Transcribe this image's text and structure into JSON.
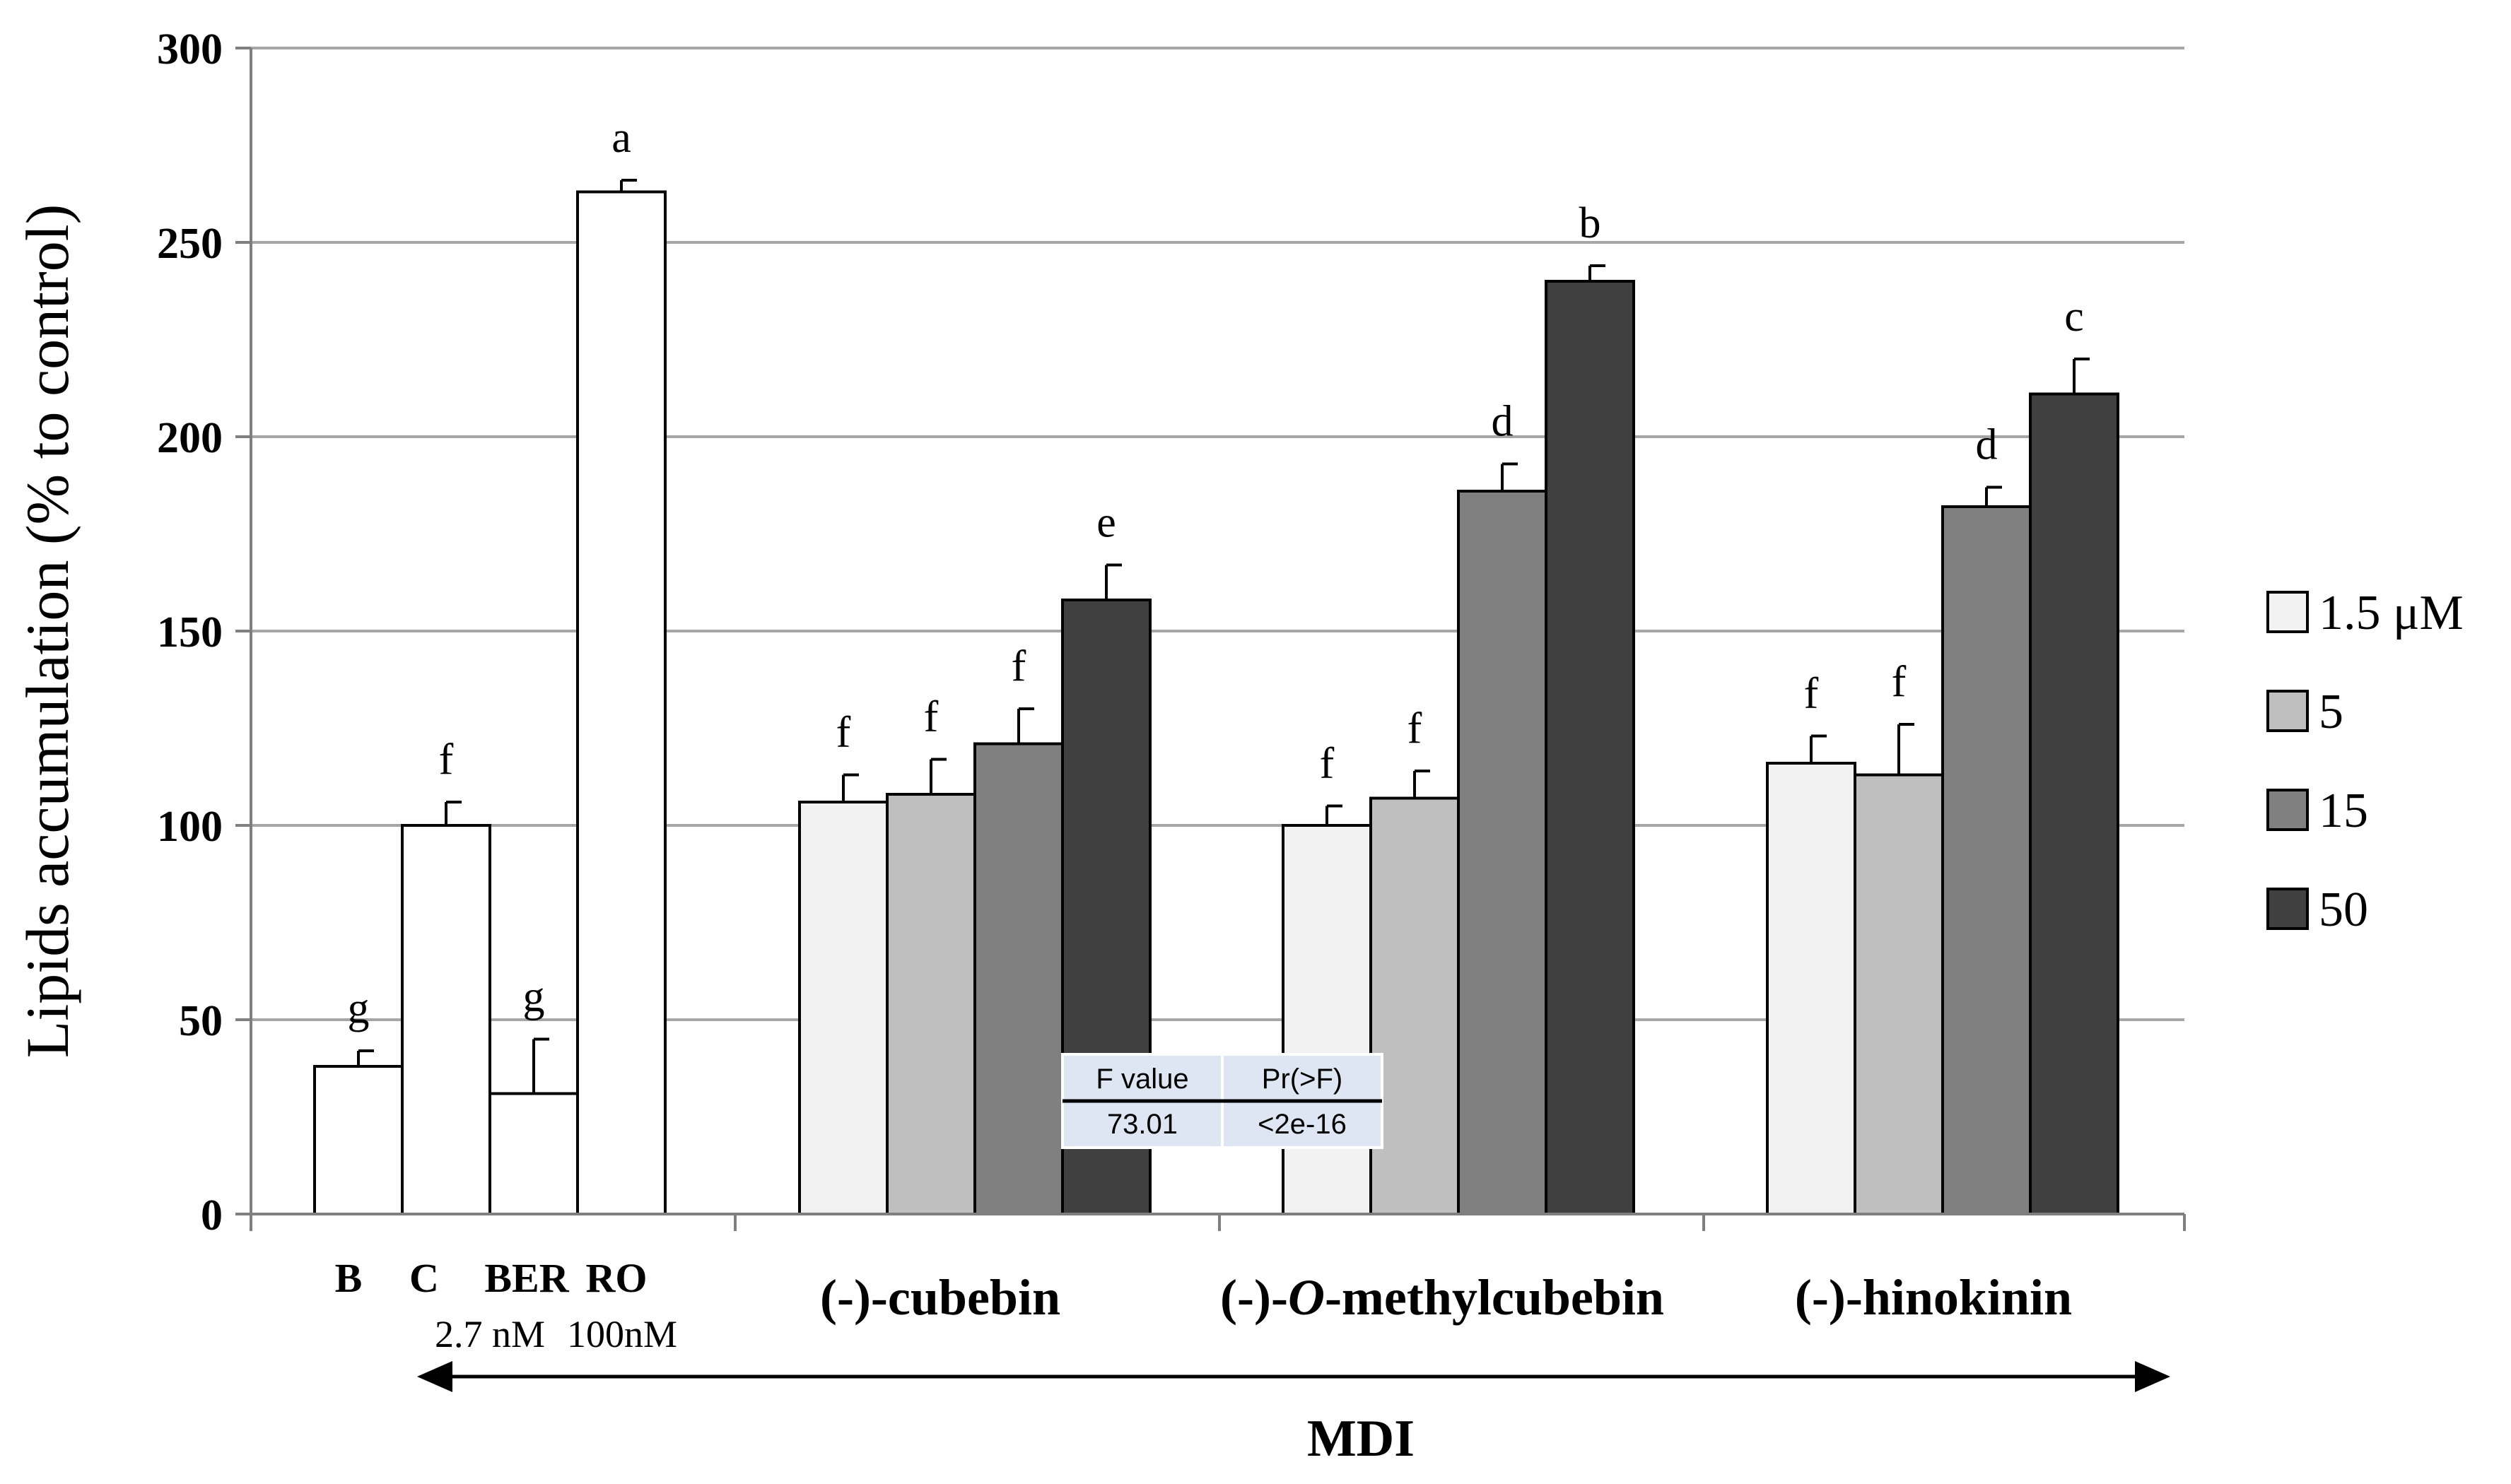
{
  "chart_data": {
    "type": "bar",
    "ylabel": "Lipids accumulation (% to control)",
    "ylim": [
      0,
      300
    ],
    "yticks": [
      0,
      50,
      100,
      150,
      200,
      250,
      300
    ],
    "grid": true,
    "legend_position": "right",
    "control_group": {
      "categories": [
        "B",
        "C",
        "BER",
        "RO"
      ],
      "values": [
        38,
        100,
        31,
        263
      ],
      "errors": [
        4,
        6,
        14,
        3
      ],
      "letters": [
        "g",
        "f",
        "g",
        "a"
      ],
      "sublabels": [
        "2.7 nM",
        "100nM"
      ],
      "color": "#ffffff"
    },
    "groups": [
      "(-)-cubebin",
      "(-)-O-methylcubebin",
      "(-)-hinokinin"
    ],
    "series": [
      {
        "name": "1.5 μM",
        "color": "#f2f2f2",
        "values": [
          106,
          100,
          116
        ],
        "errors": [
          7,
          5,
          7
        ],
        "letters": [
          "f",
          "f",
          "f"
        ]
      },
      {
        "name": "5",
        "color": "#bfbfbf",
        "values": [
          108,
          107,
          113
        ],
        "errors": [
          9,
          7,
          13
        ],
        "letters": [
          "f",
          "f",
          "f"
        ]
      },
      {
        "name": "15",
        "color": "#808080",
        "values": [
          121,
          186,
          182
        ],
        "errors": [
          9,
          7,
          5
        ],
        "letters": [
          "f",
          "d",
          "d"
        ]
      },
      {
        "name": "50",
        "color": "#404040",
        "values": [
          158,
          240,
          211
        ],
        "errors": [
          9,
          4,
          9
        ],
        "letters": [
          "e",
          "b",
          "c"
        ]
      }
    ],
    "annotation": "MDI",
    "stats_table": {
      "headers": [
        "F value",
        "Pr(>F)"
      ],
      "values": [
        "73.01",
        "<2e-16"
      ]
    }
  }
}
